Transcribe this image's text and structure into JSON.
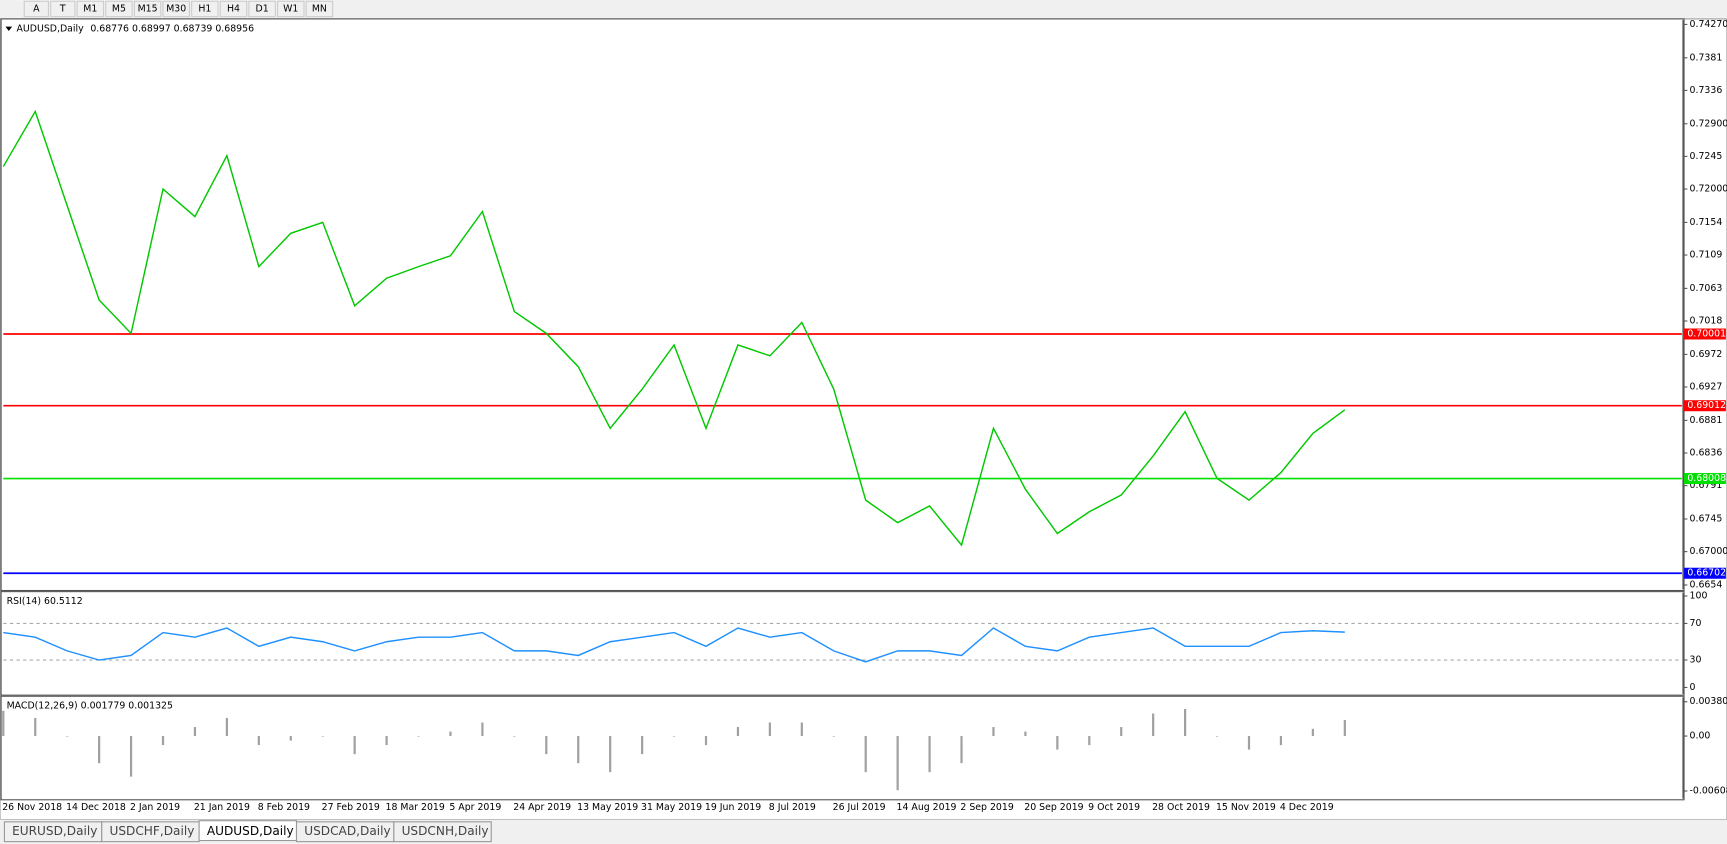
{
  "toolbar": {
    "buttons": [
      "A",
      "T",
      "M1",
      "M5",
      "M15",
      "M30",
      "H1",
      "H4",
      "D1",
      "W1",
      "MN"
    ]
  },
  "chart_data": [
    {
      "type": "line",
      "title": "AUDUSD,Daily",
      "subtitle": "0.68776 0.68997 0.68739 0.68956",
      "categories": [
        "26 Nov 2018",
        null,
        "14 Dec 2018",
        null,
        "2 Jan 2019",
        null,
        "21 Jan 2019",
        null,
        "8 Feb 2019",
        null,
        "27 Feb 2019",
        null,
        "18 Mar 2019",
        null,
        "5 Apr 2019",
        null,
        "24 Apr 2019",
        null,
        "13 May 2019",
        null,
        "31 May 2019",
        null,
        "19 Jun 2019",
        null,
        "8 Jul 2019",
        null,
        "26 Jul 2019",
        null,
        "14 Aug 2019",
        null,
        "2 Sep 2019",
        null,
        "20 Sep 2019",
        null,
        "9 Oct 2019",
        null,
        "28 Oct 2019",
        null,
        "15 Nov 2019",
        null,
        "4 Dec 2019",
        null,
        null
      ],
      "values": [
        0.7231,
        0.7307,
        0.7177,
        0.7047,
        0.7001,
        0.72,
        0.7162,
        0.7246,
        0.7093,
        0.7139,
        0.7154,
        0.7039,
        0.7077,
        0.7093,
        0.7108,
        0.7169,
        0.7031,
        0.7001,
        0.6955,
        0.687,
        0.6924,
        0.6985,
        0.687,
        0.6985,
        0.697,
        0.7016,
        0.6924,
        0.6771,
        0.674,
        0.6763,
        0.6709,
        0.687,
        0.6786,
        0.6725,
        0.6755,
        0.6778,
        0.6832,
        0.6893,
        0.6801,
        0.6771,
        0.6809,
        0.6863,
        0.68956
      ],
      "color": "#00c800",
      "ylim": [
        0.66479,
        0.74331
      ],
      "yticks": [
        {
          "value": 0.7427,
          "label": "0.74270"
        },
        0.7381,
        0.7336,
        {
          "value": 0.729,
          "label": "0.72900"
        },
        0.7245,
        {
          "value": 0.72,
          "label": "0.72000"
        },
        0.7154,
        0.7109,
        0.7063,
        0.7018,
        0.6972,
        0.6927,
        0.6881,
        0.6836,
        0.6791,
        0.6745,
        {
          "value": 0.67,
          "label": "0.67000"
        },
        0.6654
      ],
      "levels": [
        {
          "value": 0.70001,
          "color": "#ff0000"
        },
        {
          "value": 0.69012,
          "color": "#ff0000"
        },
        {
          "value": 0.68008,
          "color": "#00e000"
        },
        {
          "value": 0.66702,
          "color": "#0000ff"
        }
      ]
    },
    {
      "type": "line",
      "title": "RSI(14) 60.5112",
      "values": [
        60,
        55,
        40,
        30,
        35,
        60,
        55,
        65,
        45,
        55,
        50,
        40,
        50,
        55,
        55,
        60,
        40,
        40,
        35,
        50,
        55,
        60,
        45,
        65,
        55,
        60,
        40,
        28,
        40,
        40,
        35,
        65,
        45,
        40,
        55,
        60,
        65,
        45,
        45,
        45,
        60,
        62,
        60.5112
      ],
      "color": "#1e90ff",
      "ylim": [
        -7.2,
        103.6
      ],
      "yticks": [
        100,
        70,
        30,
        0
      ],
      "levels": [
        70,
        30
      ]
    },
    {
      "type": "bar",
      "title": "MACD(12,26,9) 0.001779 0.001325",
      "values": [
        0.0028,
        0.002,
        0,
        -0.003,
        -0.0045,
        -0.001,
        0.001,
        0.002,
        -0.001,
        -0.0005,
        0,
        -0.002,
        -0.001,
        0,
        0.0005,
        0.0015,
        0,
        -0.002,
        -0.003,
        -0.004,
        -0.002,
        0,
        -0.001,
        0.001,
        0.0015,
        0.0015,
        0,
        -0.004,
        -0.006,
        -0.004,
        -0.003,
        0.001,
        0.0005,
        -0.0015,
        -0.001,
        0.001,
        0.0025,
        0.003,
        0,
        -0.0015,
        -0.001,
        0.0008,
        0.001779
      ],
      "color": "#a0a0a0",
      "ylim": [
        -0.00694,
        0.00429
      ],
      "yticks": [
        0.003804,
        {
          "value": 0,
          "label": "0.00"
        },
        -0.006087
      ]
    }
  ],
  "tabs": [
    "EURUSD,Daily",
    "USDCHF,Daily",
    "AUDUSD,Daily",
    "USDCAD,Daily",
    "USDCNH,Daily"
  ],
  "active_tab": 2
}
